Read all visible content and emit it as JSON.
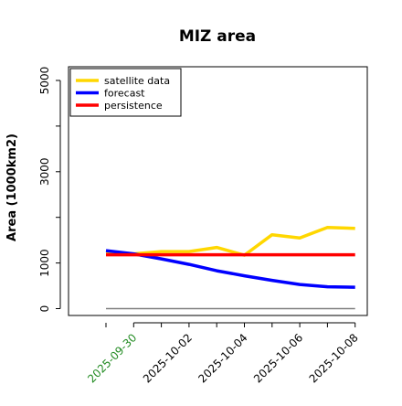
{
  "chart_data": {
    "type": "line",
    "title": "MIZ area",
    "xlabel": "",
    "ylabel": "Area (1000km2)",
    "x": [
      "2025-09-29",
      "2025-09-30",
      "2025-10-01",
      "2025-10-02",
      "2025-10-03",
      "2025-10-04",
      "2025-10-05",
      "2025-10-06",
      "2025-10-07",
      "2025-10-08"
    ],
    "x_ticks": [
      "2025-09-30",
      "2025-10-02",
      "2025-10-04",
      "2025-10-06",
      "2025-10-08"
    ],
    "highlight_tick": "2025-09-30",
    "highlight_color": "#228b22",
    "ylim": [
      -150,
      5300
    ],
    "y_ticks": [
      0,
      1000,
      3000,
      5000
    ],
    "y_minor_ticks": [
      0,
      1000,
      2000,
      3000,
      4000,
      5000
    ],
    "zero_line_color": "#808080",
    "legend_position": "top-left",
    "grid": false,
    "series": [
      {
        "name": "satellite data",
        "color": "#ffd700",
        "values": [
          1200,
          1200,
          1250,
          1250,
          1340,
          1170,
          1620,
          1550,
          1780,
          1760
        ]
      },
      {
        "name": "forecast",
        "color": "#0000ff",
        "values": [
          1270,
          1200,
          1090,
          970,
          830,
          720,
          620,
          530,
          480,
          470
        ]
      },
      {
        "name": "persistence",
        "color": "#ff0000",
        "values": [
          1180,
          1180,
          1180,
          1180,
          1180,
          1180,
          1180,
          1180,
          1180,
          1180
        ]
      }
    ]
  }
}
